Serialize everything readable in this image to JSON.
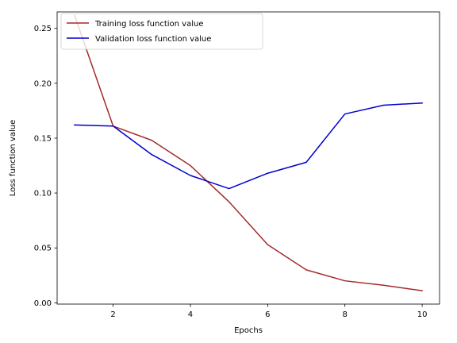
{
  "chart_data": {
    "type": "line",
    "xlabel": "Epochs",
    "ylabel": "Loss function value",
    "xlim": [
      0.55,
      10.45
    ],
    "ylim": [
      -0.0012,
      0.265
    ],
    "x_ticks": [
      2,
      4,
      6,
      8,
      10
    ],
    "y_ticks": [
      0.0,
      0.05,
      0.1,
      0.15,
      0.2,
      0.25
    ],
    "y_tick_labels": [
      "0.00",
      "0.05",
      "0.10",
      "0.15",
      "0.20",
      "0.25"
    ],
    "grid": false,
    "legend_position": "top-left",
    "x": [
      1,
      2,
      3,
      4,
      5,
      6,
      7,
      8,
      9,
      10
    ],
    "series": [
      {
        "name": "Training loss function value",
        "color": "#a52a2a",
        "values": [
          0.262,
          0.161,
          0.148,
          0.125,
          0.092,
          0.053,
          0.03,
          0.02,
          0.016,
          0.011
        ]
      },
      {
        "name": "Validation loss function value",
        "color": "#0000cd",
        "values": [
          0.162,
          0.161,
          0.135,
          0.116,
          0.104,
          0.118,
          0.128,
          0.172,
          0.18,
          0.182
        ]
      }
    ]
  }
}
